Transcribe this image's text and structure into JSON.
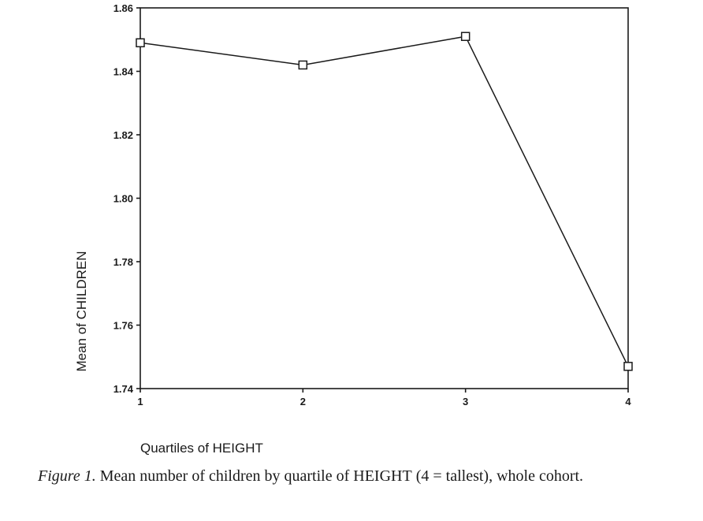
{
  "chart_data": {
    "type": "line",
    "x": [
      1,
      2,
      3,
      4
    ],
    "values": [
      1.849,
      1.842,
      1.851,
      1.747
    ],
    "marker": "open-square",
    "xlabel": "Quartiles of HEIGHT",
    "ylabel": "Mean of CHILDREN",
    "xlim": [
      1,
      4
    ],
    "ylim": [
      1.74,
      1.86
    ],
    "xticks": [
      "1",
      "2",
      "3",
      "4"
    ],
    "yticks": [
      "1.74",
      "1.76",
      "1.78",
      "1.80",
      "1.82",
      "1.84",
      "1.86"
    ],
    "grid": false
  },
  "caption": {
    "label": "Figure 1.",
    "text_before": "Mean number of children by quartile of",
    "keyword": "HEIGHT",
    "text_after": "(4 = tallest), whole cohort."
  }
}
